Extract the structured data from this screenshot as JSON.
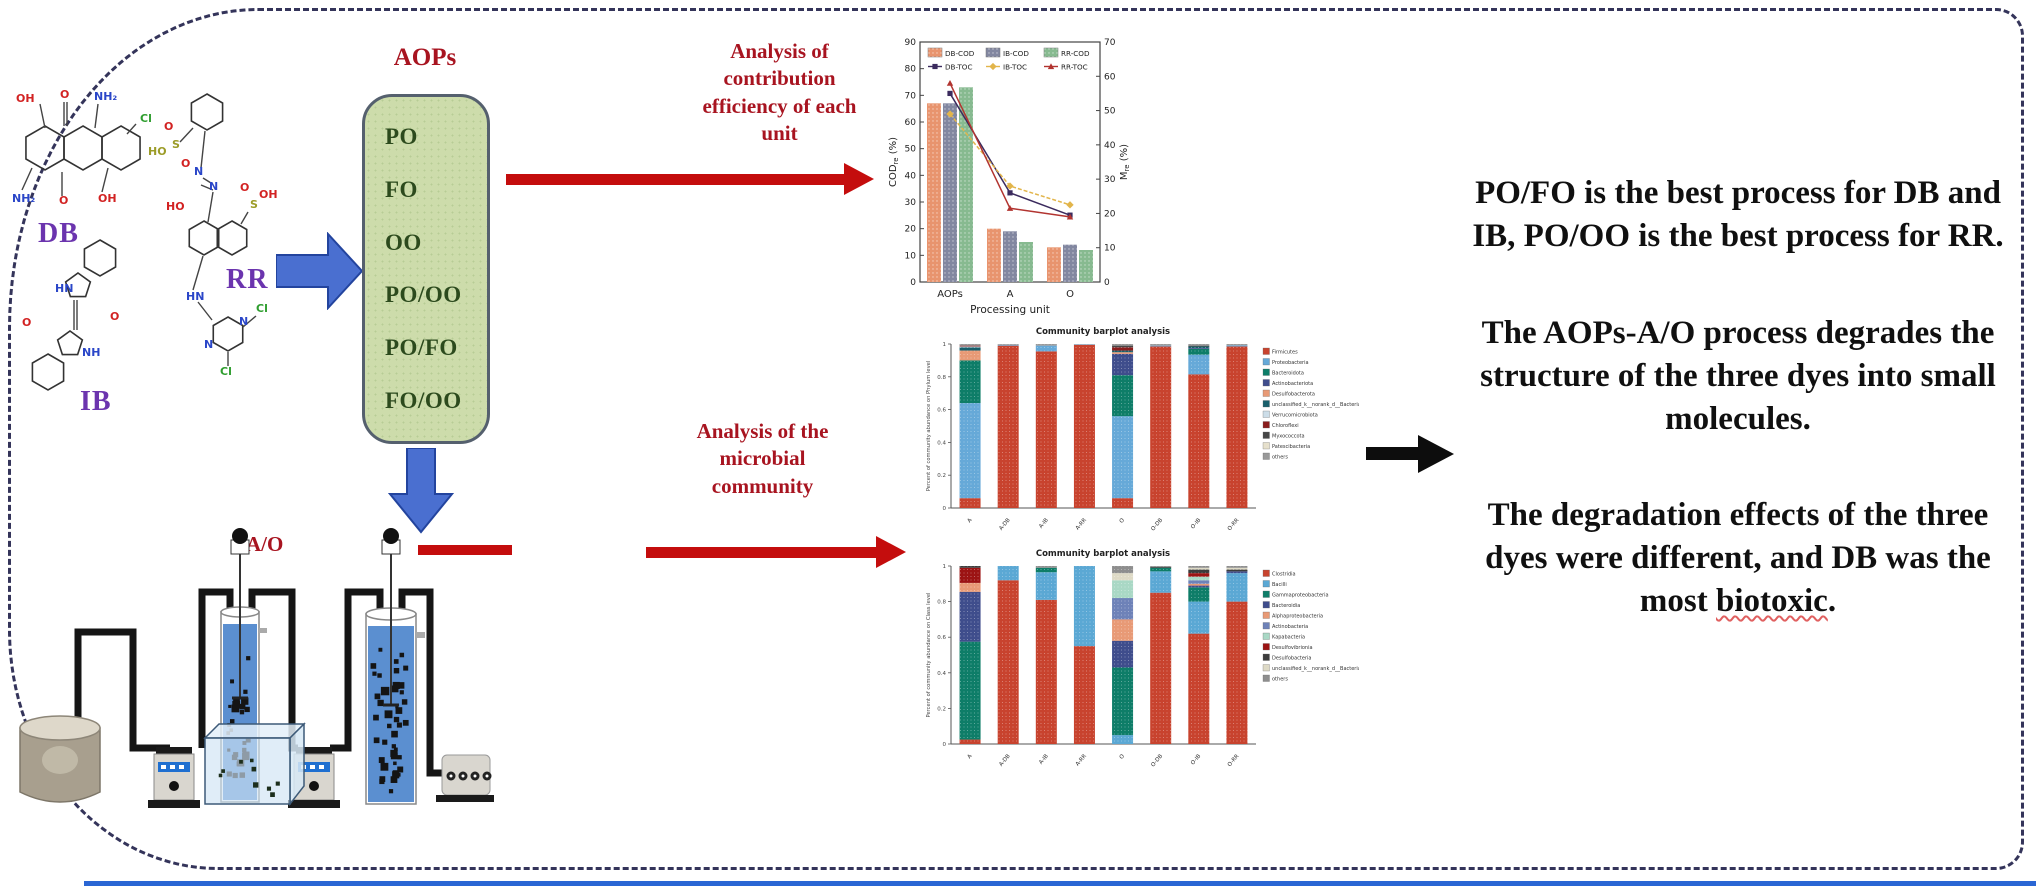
{
  "figure": {
    "dyes": {
      "db": "DB",
      "ib": "IB",
      "rr": "RR"
    },
    "atom_labels": {
      "db": [
        "OH",
        "O",
        "NH₂",
        "Cl",
        "NH₂",
        "O",
        "OH"
      ],
      "ib": [
        "HN",
        "O",
        "O",
        "NH"
      ],
      "rr": [
        "HO",
        "S",
        "O",
        "O",
        "N",
        "N",
        "HO",
        "S",
        "O",
        "OH",
        "HN",
        "N",
        "N",
        "Cl",
        "Cl"
      ]
    },
    "aops": {
      "title": "AOPs",
      "items": [
        "PO",
        "FO",
        "OO",
        "PO/OO",
        "PO/FO",
        "FO/OO"
      ]
    },
    "ao_label": "A/O",
    "annotations": {
      "arrow1_text": "Analysis of\ncontribution\nefficiency of each\nunit",
      "arrow2_text": "Analysis of the\nmicrobial\ncommunity"
    },
    "conclusions": {
      "p1": "PO/FO is the best process for DB and IB, PO/OO is the best process for RR.",
      "p2": "The AOPs-A/O process degrades the structure of the three dyes into small molecules.",
      "p3_before": "The degradation effects of the three dyes were different, and DB was the most ",
      "p3_underlined": "biotoxic",
      "p3_after": "."
    }
  },
  "chart_data": [
    {
      "type": "bar+line",
      "title": "",
      "categories": [
        "AOPs",
        "A",
        "O"
      ],
      "xlabel": "Processing unit",
      "ylabel_left_parts": [
        "COD",
        "re",
        " (%)"
      ],
      "ylabel_right_parts": [
        "M",
        "re",
        " (%)"
      ],
      "ylim_left": [
        0,
        90
      ],
      "ylim_right": [
        0,
        70
      ],
      "bar_series": [
        {
          "name": "DB-COD",
          "color": "#E8946E",
          "values": [
            67,
            20,
            13
          ]
        },
        {
          "name": "IB-COD",
          "color": "#8287A0",
          "values": [
            67,
            19,
            14
          ]
        },
        {
          "name": "RR-COD",
          "color": "#87BA90",
          "values": [
            73,
            15,
            12
          ]
        }
      ],
      "line_series": [
        {
          "name": "DB-TOC",
          "color": "#3B2B5E",
          "marker": "square",
          "values": [
            55,
            26,
            19.5
          ]
        },
        {
          "name": "IB-TOC",
          "color": "#E2B54B",
          "marker": "diamond",
          "values": [
            49,
            28,
            22.5
          ]
        },
        {
          "name": "RR-TOC",
          "color": "#B23430",
          "marker": "triangle",
          "values": [
            58,
            21.5,
            19
          ]
        }
      ]
    },
    {
      "type": "stacked-bar",
      "title": "Community barplot analysis",
      "ylabel": "Percent of community abundance on Phylum level",
      "ylim": [
        0,
        1
      ],
      "categories": [
        "A",
        "A-DB",
        "A-IB",
        "A-RR",
        "O",
        "O-DB",
        "O-IB",
        "O-RR"
      ],
      "taxa": [
        {
          "name": "Firmicutes",
          "color": "#C8432E"
        },
        {
          "name": "Proteobacteria",
          "color": "#66A9D8"
        },
        {
          "name": "Bacteroidota",
          "color": "#0E7D68"
        },
        {
          "name": "Actinobacteriota",
          "color": "#3F4D8C"
        },
        {
          "name": "Desulfobacterota",
          "color": "#E89A76"
        },
        {
          "name": "unclassified_k__norank_d__Bacteria",
          "color": "#195F6B"
        },
        {
          "name": "Verrucomicrobiota",
          "color": "#CCDDE8"
        },
        {
          "name": "Chloroflexi",
          "color": "#8A1D1D"
        },
        {
          "name": "Myxococcota",
          "color": "#474747"
        },
        {
          "name": "Patescibacteria",
          "color": "#E6E0CC"
        },
        {
          "name": "others",
          "color": "#999999"
        }
      ],
      "series": [
        [
          0.06,
          0.58,
          0.26,
          0,
          0.06,
          0.02,
          0.005,
          0.005,
          0,
          0,
          0.01
        ],
        [
          0.99,
          0.005,
          0,
          0,
          0,
          0,
          0,
          0,
          0,
          0,
          0.005
        ],
        [
          0.955,
          0.035,
          0,
          0,
          0,
          0,
          0,
          0,
          0,
          0,
          0.01
        ],
        [
          0.995,
          0.003,
          0,
          0,
          0,
          0,
          0,
          0,
          0,
          0,
          0.002
        ],
        [
          0.06,
          0.5,
          0.25,
          0.13,
          0.01,
          0.01,
          0,
          0.02,
          0.01,
          0,
          0.01
        ],
        [
          0.985,
          0.005,
          0,
          0,
          0,
          0,
          0,
          0,
          0,
          0,
          0.01
        ],
        [
          0.815,
          0.12,
          0.035,
          0.005,
          0,
          0.01,
          0,
          0,
          0.005,
          0,
          0.01
        ],
        [
          0.985,
          0.007,
          0,
          0,
          0,
          0,
          0,
          0,
          0,
          0,
          0.008
        ]
      ]
    },
    {
      "type": "stacked-bar",
      "title": "Community barplot analysis",
      "ylabel": "Percent of community abundance on Class level",
      "ylim": [
        0,
        1
      ],
      "categories": [
        "A",
        "A-DB",
        "A-IB",
        "A-RR",
        "O",
        "O-DB",
        "O-IB",
        "O-RR"
      ],
      "taxa": [
        {
          "name": "Clostridia",
          "color": "#C8432E"
        },
        {
          "name": "Bacilli",
          "color": "#5BA8D4"
        },
        {
          "name": "Gammaproteobacteria",
          "color": "#0E7D68"
        },
        {
          "name": "Bacteroidia",
          "color": "#3F4D8C"
        },
        {
          "name": "Alphaproteobacteria",
          "color": "#E89A76"
        },
        {
          "name": "Actinobacteria",
          "color": "#6E82B8"
        },
        {
          "name": "Kapabacteria",
          "color": "#A9D8C5"
        },
        {
          "name": "Desulfovibrionia",
          "color": "#9C1414"
        },
        {
          "name": "Desulfobacteria",
          "color": "#3C3C3C"
        },
        {
          "name": "unclassified_k__norank_d__Bacteria",
          "color": "#DEDAC6"
        },
        {
          "name": "others",
          "color": "#8E8E8E"
        }
      ],
      "series": [
        [
          0.025,
          0,
          0.55,
          0.28,
          0.05,
          0,
          0,
          0.085,
          0.01,
          0,
          0
        ],
        [
          0.92,
          0.08,
          0,
          0,
          0,
          0,
          0,
          0,
          0,
          0,
          0
        ],
        [
          0.81,
          0.155,
          0.025,
          0,
          0,
          0,
          0,
          0,
          0,
          0,
          0.01
        ],
        [
          0.55,
          0.45,
          0,
          0,
          0,
          0,
          0,
          0,
          0,
          0,
          0
        ],
        [
          0,
          0.05,
          0.38,
          0.15,
          0.12,
          0.12,
          0.1,
          0,
          0,
          0.04,
          0.04
        ],
        [
          0.85,
          0.12,
          0.02,
          0,
          0,
          0,
          0,
          0,
          0.005,
          0,
          0.005
        ],
        [
          0.62,
          0.18,
          0.08,
          0.01,
          0.01,
          0.02,
          0.02,
          0.02,
          0.02,
          0.01,
          0.01
        ],
        [
          0.8,
          0.16,
          0,
          0.01,
          0,
          0,
          0,
          0,
          0.01,
          0.01,
          0.01
        ]
      ]
    }
  ]
}
